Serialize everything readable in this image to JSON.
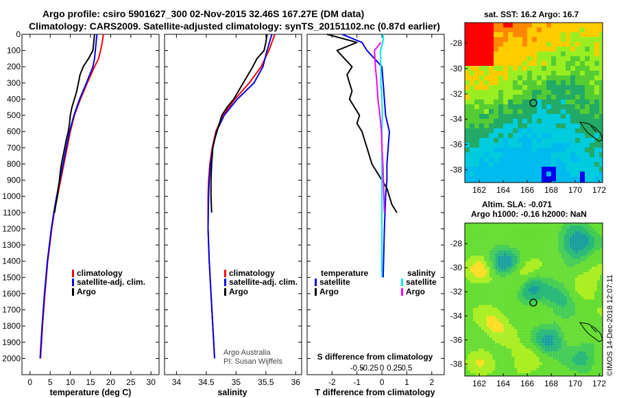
{
  "header": {
    "title_line1": "Argo profile: csiro 5901627_300 02-Nov-2015 32.46S 167.27E (DM data)",
    "title_line2": "Climatology: CARS2009. Satellite-adjusted climatology: synTS_20151102.nc (0.87d earlier)"
  },
  "colors": {
    "climatology": "#ff0000",
    "satellite": "#0000e0",
    "argo": "#000000",
    "sat_salinity": "#00e8e8",
    "argo_salinity": "#ff00ff"
  },
  "depth_axis": {
    "ticks": [
      0,
      100,
      200,
      300,
      400,
      500,
      600,
      700,
      800,
      900,
      1000,
      1100,
      1200,
      1300,
      1400,
      1500,
      1600,
      1700,
      1800,
      1900,
      2000
    ],
    "tick_labels": [
      "0",
      "100",
      "200",
      "300",
      "400",
      "500",
      "600",
      "700",
      "800",
      "900",
      "1000",
      "1100",
      "1200",
      "1300",
      "1400",
      "1500",
      "1600",
      "1700",
      "1800",
      "1900",
      "2000"
    ]
  },
  "chart_data": [
    {
      "type": "line",
      "title": "temperature panel",
      "xlabel": "temperature (deg C)",
      "ylabel": "depth",
      "xlim": [
        -2,
        32
      ],
      "ylim": [
        2100,
        0
      ],
      "xticks": [
        0,
        5,
        10,
        15,
        20,
        25,
        30
      ],
      "xtick_labels": [
        "0",
        "5",
        "10",
        "15",
        "20",
        "25",
        "30"
      ],
      "legend": {
        "placement": "center-right",
        "items": [
          "climatology",
          "satellite-adj. clim.",
          "Argo"
        ]
      },
      "series": [
        {
          "name": "climatology",
          "color": "#ff0000",
          "depth": [
            0,
            50,
            100,
            150,
            200,
            300,
            400,
            500,
            600,
            700,
            800,
            900,
            1000,
            1100,
            1200,
            1400,
            1600,
            1800,
            2000
          ],
          "values": [
            18.2,
            17.9,
            17.5,
            17.0,
            16.0,
            14.2,
            12.5,
            11.0,
            10.0,
            9.2,
            8.4,
            7.6,
            6.8,
            6.0,
            5.4,
            4.4,
            3.7,
            3.1,
            2.6
          ]
        },
        {
          "name": "satellite-adj. clim.",
          "color": "#0000e0",
          "depth": [
            0,
            50,
            100,
            150,
            200,
            300,
            400,
            500,
            600,
            700,
            800,
            900,
            1000,
            1100,
            1200,
            1400,
            1600,
            1800,
            2000
          ],
          "values": [
            16.6,
            16.4,
            16.2,
            16.0,
            15.6,
            14.0,
            12.3,
            10.9,
            9.8,
            9.0,
            8.2,
            7.4,
            6.6,
            5.9,
            5.3,
            4.3,
            3.6,
            3.0,
            2.5
          ]
        },
        {
          "name": "Argo",
          "color": "#000000",
          "depth": [
            0,
            50,
            100,
            150,
            200,
            250,
            300,
            350,
            400,
            450,
            500,
            550,
            600,
            650,
            700,
            750,
            800,
            850,
            900,
            950,
            1000,
            1050,
            1100
          ],
          "values": [
            16.0,
            15.8,
            15.6,
            14.5,
            13.2,
            12.4,
            12.0,
            11.6,
            11.0,
            10.4,
            10.0,
            9.8,
            9.5,
            9.0,
            8.6,
            8.2,
            7.8,
            7.5,
            7.3,
            7.0,
            6.8,
            6.4,
            6.1
          ]
        }
      ]
    },
    {
      "type": "line",
      "title": "salinity panel",
      "xlabel": "salinity",
      "ylabel": "depth",
      "xlim": [
        33.8,
        36.1
      ],
      "ylim": [
        2100,
        0
      ],
      "xticks": [
        34,
        34.5,
        35,
        35.5,
        36
      ],
      "xtick_labels": [
        "34",
        "34.5",
        "35",
        "35.5",
        "36"
      ],
      "legend": {
        "placement": "center-right",
        "items": [
          "climatology",
          "satellite-adj. clim.",
          "Argo"
        ]
      },
      "annotation": [
        "Argo Australia",
        "PI: Susan Wijffels"
      ],
      "series": [
        {
          "name": "climatology",
          "color": "#ff0000",
          "depth": [
            0,
            100,
            200,
            300,
            400,
            500,
            600,
            700,
            800,
            900,
            1000,
            1200,
            1400,
            1600,
            1800,
            2000
          ],
          "values": [
            35.65,
            35.55,
            35.42,
            35.22,
            34.98,
            34.78,
            34.66,
            34.6,
            34.56,
            34.54,
            34.53,
            34.53,
            34.55,
            34.58,
            34.61,
            34.64
          ]
        },
        {
          "name": "satellite-adj. clim.",
          "color": "#0000e0",
          "depth": [
            0,
            100,
            200,
            300,
            400,
            500,
            600,
            700,
            800,
            900,
            1000,
            1200,
            1400,
            1600,
            1800,
            2000
          ],
          "values": [
            35.6,
            35.52,
            35.45,
            35.3,
            35.02,
            34.8,
            34.67,
            34.61,
            34.57,
            34.55,
            34.54,
            34.53,
            34.55,
            34.58,
            34.61,
            34.64
          ]
        },
        {
          "name": "Argo",
          "color": "#000000",
          "depth": [
            0,
            50,
            100,
            150,
            200,
            300,
            400,
            450,
            500,
            550,
            600,
            650,
            700,
            750,
            800,
            900,
            1000,
            1100
          ],
          "values": [
            35.52,
            35.5,
            35.47,
            35.35,
            35.28,
            35.12,
            34.96,
            34.85,
            34.76,
            34.72,
            34.68,
            34.64,
            34.61,
            34.6,
            34.59,
            34.58,
            34.58,
            34.59
          ]
        }
      ]
    },
    {
      "type": "line",
      "title": "difference panel",
      "xlabel": "T difference from climatology",
      "xlabel_top": "S difference from climatology",
      "ylabel": "depth",
      "xlim": [
        -3,
        2.5
      ],
      "ylim": [
        2100,
        0
      ],
      "xticks": [
        -2,
        -1,
        0,
        1,
        2
      ],
      "xtick_labels": [
        "-2",
        "-1",
        "0",
        "1",
        "2"
      ],
      "s_ticks": [
        -0.5,
        -0.25,
        0,
        0.25,
        0.5
      ],
      "s_tick_labels": [
        "-0.5",
        "-0.25",
        "0",
        "0.25",
        "0.5"
      ],
      "legend_temperature": {
        "title": "temperature",
        "items": [
          "satellite",
          "Argo"
        ]
      },
      "legend_salinity": {
        "title": "salinity",
        "items": [
          "satellite",
          "Argo"
        ]
      },
      "series": [
        {
          "name": "T satellite",
          "color": "#0000e0",
          "depth": [
            0,
            50,
            100,
            200,
            300,
            400,
            500,
            600,
            700,
            800,
            900,
            1000,
            1200,
            1500
          ],
          "values": [
            -1.6,
            -0.8,
            -0.6,
            0.0,
            0.05,
            0.1,
            0.15,
            0.3,
            0.25,
            0.2,
            0.2,
            0.15,
            0.1,
            0.05
          ]
        },
        {
          "name": "T Argo",
          "color": "#000000",
          "depth": [
            0,
            50,
            100,
            150,
            200,
            250,
            300,
            350,
            400,
            450,
            500,
            550,
            600,
            650,
            700,
            750,
            800,
            850,
            900,
            950,
            1000,
            1050,
            1100
          ],
          "values": [
            -2.2,
            -1.0,
            -1.8,
            -1.5,
            -1.2,
            -1.4,
            -1.3,
            -1.2,
            -1.3,
            -1.1,
            -0.9,
            -1.0,
            -0.8,
            -0.7,
            -0.6,
            -0.5,
            -0.4,
            -0.2,
            0.0,
            0.2,
            0.3,
            0.4,
            0.6
          ]
        },
        {
          "name": "S satellite",
          "color": "#00e8e8",
          "depth": [
            0,
            50,
            100,
            200,
            300,
            400,
            500,
            600,
            700,
            800,
            900,
            1000,
            1100,
            1200,
            1500
          ],
          "values": [
            0.03,
            0.02,
            -0.03,
            -0.02,
            -0.02,
            0.0,
            0.01,
            0.0,
            0.0,
            0.0,
            0.0,
            0.0,
            0.0,
            0.0,
            0.0
          ]
        },
        {
          "name": "S Argo",
          "color": "#ff00ff",
          "depth": [
            50,
            100,
            200,
            300,
            400,
            500,
            600,
            700,
            800,
            900,
            1000,
            1100
          ],
          "values": [
            -0.02,
            -0.15,
            -0.13,
            -0.1,
            -0.08,
            -0.04,
            -0.01,
            0.0,
            0.02,
            0.03,
            0.04,
            0.05
          ]
        }
      ]
    }
  ],
  "map_sst": {
    "title": "sat. SST: 16.2 Argo: 16.7",
    "xticks": [
      "162",
      "164",
      "166",
      "168",
      "170",
      "172"
    ],
    "yticks": [
      "-28",
      "-30",
      "-32",
      "-34",
      "-36",
      "-38"
    ]
  },
  "map_sla": {
    "title_line1": "Altim. SLA: -0.071",
    "title_line2": "Argo h1000: -0.16 h2000: NaN",
    "xticks": [
      "162",
      "164",
      "166",
      "168",
      "170",
      "172"
    ],
    "yticks": [
      "-28",
      "-30",
      "-32",
      "-34",
      "-36",
      "-38"
    ]
  },
  "credit": "©IMOS 14-Dec-2018 12:07:11"
}
